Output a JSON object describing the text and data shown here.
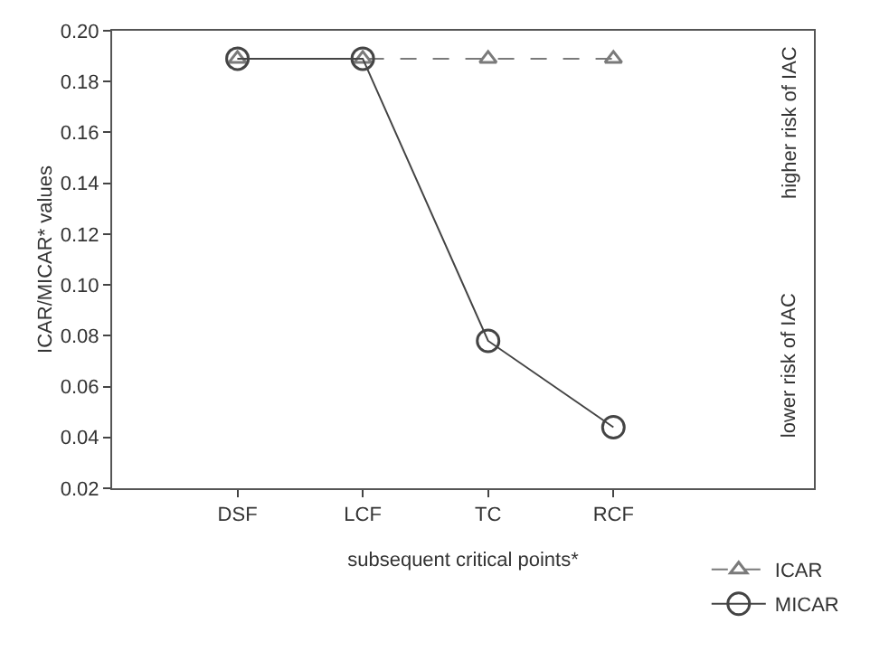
{
  "chart_data": {
    "type": "line",
    "xlabel": "subsequent critical points*",
    "ylabel": "ICAR/MICAR* values",
    "categories": [
      "DSF",
      "LCF",
      "TC",
      "RCF"
    ],
    "series": [
      {
        "name": "ICAR",
        "color": "#7a7a7a",
        "values": [
          0.189,
          0.189,
          0.189,
          0.189
        ],
        "marker": "triangle",
        "line_style": "dashed"
      },
      {
        "name": "MICAR",
        "color": "#444444",
        "values": [
          0.189,
          0.189,
          0.078,
          0.044
        ],
        "marker": "circle",
        "line_style": "solid"
      }
    ],
    "ylim": [
      0.02,
      0.2
    ],
    "yticks": [
      0.02,
      0.04,
      0.06,
      0.08,
      {
        "value": 0.1,
        "label": "0.10"
      },
      0.12,
      0.14,
      0.16,
      0.18,
      {
        "value": 0.2,
        "label": "0.20"
      }
    ],
    "annotations": [
      "higher risk of IAC",
      "lower risk of IAC"
    ],
    "grid": false,
    "legend": "bottom right"
  }
}
